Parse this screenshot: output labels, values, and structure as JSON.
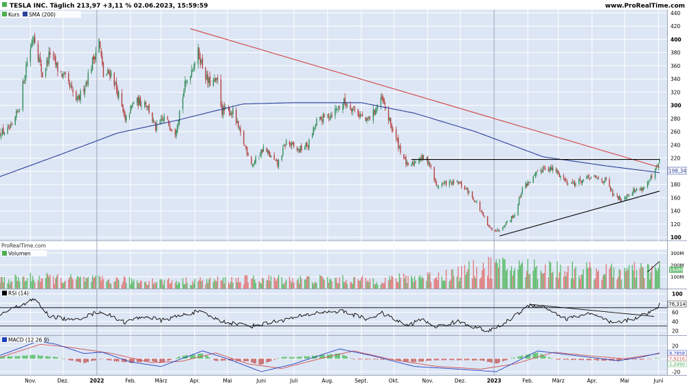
{
  "header": {
    "title": "TESLA INC. Täglich 213,97 +3,11 % 02.06.2023, 15:59:59",
    "site": "www.ProRealTime.com"
  },
  "watermark": "ProRealTime.com",
  "colors": {
    "background": "#ffffff",
    "panel": "#dde6f4",
    "grid": "#ffffff",
    "up": "#2e8b57",
    "down": "#b23a3a",
    "sma": "#2a3f9a",
    "trend_red": "#d04040",
    "trend_black": "#000000",
    "vol_up": "#5dbb6b",
    "vol_down": "#e07a7a",
    "rsi": "#000000",
    "macd": "#1f3fbf",
    "signal": "#d05050",
    "hist_up": "#58c068",
    "hist_down": "#c86464"
  },
  "chart_data": [
    {
      "type": "candlestick",
      "panel": "price",
      "legend": [
        {
          "name": "Kurs",
          "color": "#4caf50"
        },
        {
          "name": "SMA (200)",
          "color": "#2a3f9a"
        }
      ],
      "ylim": [
        95,
        445
      ],
      "yticks": [
        100,
        120,
        140,
        160,
        180,
        200,
        220,
        240,
        260,
        280,
        300,
        320,
        340,
        360,
        380,
        400,
        420,
        440
      ],
      "current_value": "198,34",
      "x_axis": {
        "start_date": "2021-10-04",
        "end_date": "2023-06-02",
        "month_labels": [
          {
            "date": "2021-11-01",
            "label": "Nov."
          },
          {
            "date": "2021-12-01",
            "label": "Dez."
          },
          {
            "date": "2022-01-01",
            "label": "2022"
          },
          {
            "date": "2022-02-01",
            "label": "Feb."
          },
          {
            "date": "2022-03-01",
            "label": "März"
          },
          {
            "date": "2022-04-01",
            "label": "Apr."
          },
          {
            "date": "2022-05-01",
            "label": "Mai"
          },
          {
            "date": "2022-06-01",
            "label": "Juni"
          },
          {
            "date": "2022-07-01",
            "label": "Juli"
          },
          {
            "date": "2022-08-01",
            "label": "Aug."
          },
          {
            "date": "2022-09-01",
            "label": "Sept."
          },
          {
            "date": "2022-10-01",
            "label": "Okt."
          },
          {
            "date": "2022-11-01",
            "label": "Nov."
          },
          {
            "date": "2022-12-01",
            "label": "Dez."
          },
          {
            "date": "2023-01-01",
            "label": "2023"
          },
          {
            "date": "2023-02-01",
            "label": "Feb."
          },
          {
            "date": "2023-03-01",
            "label": "März"
          },
          {
            "date": "2023-04-01",
            "label": "Apr."
          },
          {
            "date": "2023-05-01",
            "label": "Mai"
          },
          {
            "date": "2023-06-01",
            "label": "Juni"
          }
        ]
      },
      "close_anchors": [
        {
          "date": "2021-10-04",
          "value": 258
        },
        {
          "date": "2021-10-15",
          "value": 265
        },
        {
          "date": "2021-10-22",
          "value": 300
        },
        {
          "date": "2021-10-28",
          "value": 360
        },
        {
          "date": "2021-11-04",
          "value": 408
        },
        {
          "date": "2021-11-12",
          "value": 345
        },
        {
          "date": "2021-11-19",
          "value": 380
        },
        {
          "date": "2021-11-26",
          "value": 355
        },
        {
          "date": "2021-12-03",
          "value": 340
        },
        {
          "date": "2021-12-14",
          "value": 305
        },
        {
          "date": "2021-12-22",
          "value": 335
        },
        {
          "date": "2022-01-03",
          "value": 398
        },
        {
          "date": "2022-01-07",
          "value": 345
        },
        {
          "date": "2022-01-14",
          "value": 350
        },
        {
          "date": "2022-01-21",
          "value": 315
        },
        {
          "date": "2022-01-27",
          "value": 275
        },
        {
          "date": "2022-02-04",
          "value": 305
        },
        {
          "date": "2022-02-15",
          "value": 305
        },
        {
          "date": "2022-02-24",
          "value": 265
        },
        {
          "date": "2022-03-04",
          "value": 280
        },
        {
          "date": "2022-03-14",
          "value": 260
        },
        {
          "date": "2022-03-23",
          "value": 330
        },
        {
          "date": "2022-04-04",
          "value": 380
        },
        {
          "date": "2022-04-13",
          "value": 335
        },
        {
          "date": "2022-04-22",
          "value": 335
        },
        {
          "date": "2022-04-26",
          "value": 292
        },
        {
          "date": "2022-05-06",
          "value": 290
        },
        {
          "date": "2022-05-13",
          "value": 255
        },
        {
          "date": "2022-05-24",
          "value": 210
        },
        {
          "date": "2022-06-03",
          "value": 235
        },
        {
          "date": "2022-06-16",
          "value": 210
        },
        {
          "date": "2022-06-24",
          "value": 245
        },
        {
          "date": "2022-07-05",
          "value": 232
        },
        {
          "date": "2022-07-14",
          "value": 240
        },
        {
          "date": "2022-07-22",
          "value": 275
        },
        {
          "date": "2022-08-05",
          "value": 288
        },
        {
          "date": "2022-08-16",
          "value": 305
        },
        {
          "date": "2022-08-25",
          "value": 295
        },
        {
          "date": "2022-09-06",
          "value": 275
        },
        {
          "date": "2022-09-20",
          "value": 308
        },
        {
          "date": "2022-09-26",
          "value": 280
        },
        {
          "date": "2022-10-05",
          "value": 240
        },
        {
          "date": "2022-10-14",
          "value": 205
        },
        {
          "date": "2022-10-25",
          "value": 222
        },
        {
          "date": "2022-11-02",
          "value": 215
        },
        {
          "date": "2022-11-09",
          "value": 178
        },
        {
          "date": "2022-11-18",
          "value": 182
        },
        {
          "date": "2022-11-29",
          "value": 182
        },
        {
          "date": "2022-12-07",
          "value": 172
        },
        {
          "date": "2022-12-16",
          "value": 152
        },
        {
          "date": "2022-12-27",
          "value": 115
        },
        {
          "date": "2023-01-04",
          "value": 110
        },
        {
          "date": "2023-01-12",
          "value": 122
        },
        {
          "date": "2023-01-20",
          "value": 135
        },
        {
          "date": "2023-01-27",
          "value": 175
        },
        {
          "date": "2023-02-06",
          "value": 190
        },
        {
          "date": "2023-02-16",
          "value": 207
        },
        {
          "date": "2023-02-27",
          "value": 200
        },
        {
          "date": "2023-03-08",
          "value": 185
        },
        {
          "date": "2023-03-16",
          "value": 182
        },
        {
          "date": "2023-03-29",
          "value": 190
        },
        {
          "date": "2023-04-05",
          "value": 190
        },
        {
          "date": "2023-04-14",
          "value": 185
        },
        {
          "date": "2023-04-21",
          "value": 162
        },
        {
          "date": "2023-04-28",
          "value": 158
        },
        {
          "date": "2023-05-08",
          "value": 170
        },
        {
          "date": "2023-05-18",
          "value": 175
        },
        {
          "date": "2023-05-26",
          "value": 190
        },
        {
          "date": "2023-06-02",
          "value": 214
        }
      ],
      "sma_anchors": [
        {
          "date": "2021-10-04",
          "value": 192
        },
        {
          "date": "2021-12-01",
          "value": 227
        },
        {
          "date": "2022-01-20",
          "value": 258
        },
        {
          "date": "2022-03-15",
          "value": 277
        },
        {
          "date": "2022-05-15",
          "value": 302
        },
        {
          "date": "2022-07-01",
          "value": 304
        },
        {
          "date": "2022-09-01",
          "value": 304
        },
        {
          "date": "2022-10-20",
          "value": 288
        },
        {
          "date": "2022-12-15",
          "value": 260
        },
        {
          "date": "2023-02-15",
          "value": 222
        },
        {
          "date": "2023-04-15",
          "value": 208
        },
        {
          "date": "2023-06-02",
          "value": 198
        }
      ],
      "trendlines": [
        {
          "color": "red",
          "from": {
            "date": "2022-03-28",
            "value": 416
          },
          "to": {
            "date": "2023-06-02",
            "value": 206
          }
        },
        {
          "color": "black",
          "from": {
            "date": "2022-10-17",
            "value": 218
          },
          "to": {
            "date": "2023-06-02",
            "value": 218
          }
        },
        {
          "color": "black",
          "from": {
            "date": "2023-01-06",
            "value": 102
          },
          "to": {
            "date": "2023-06-02",
            "value": 170
          }
        }
      ]
    },
    {
      "type": "bar",
      "panel": "volume",
      "legend": [
        {
          "name": "Volumen",
          "color": "#4caf50"
        }
      ],
      "ylim": [
        0,
        330
      ],
      "ytick_labels": [
        {
          "value": 300,
          "label": "300M"
        },
        {
          "value": 200,
          "label": "200M"
        },
        {
          "value": 100,
          "label": "100M"
        }
      ],
      "current_value": "164M",
      "level_anchors": [
        {
          "date": "2021-10-04",
          "value": 70
        },
        {
          "date": "2021-11-05",
          "value": 90
        },
        {
          "date": "2022-01-10",
          "value": 70
        },
        {
          "date": "2022-03-15",
          "value": 60
        },
        {
          "date": "2022-06-15",
          "value": 80
        },
        {
          "date": "2022-09-15",
          "value": 70
        },
        {
          "date": "2022-11-15",
          "value": 110
        },
        {
          "date": "2022-12-28",
          "value": 180
        },
        {
          "date": "2023-02-15",
          "value": 170
        },
        {
          "date": "2023-04-15",
          "value": 140
        },
        {
          "date": "2023-06-02",
          "value": 150
        }
      ]
    },
    {
      "type": "line",
      "panel": "rsi",
      "legend": [
        {
          "name": "RSI (14)",
          "color": "#000000"
        }
      ],
      "ylim": [
        10,
        110
      ],
      "yticks": [
        100,
        80,
        60,
        40,
        20
      ],
      "levels": [
        70,
        30
      ],
      "current_value": "76,314",
      "anchors": [
        {
          "date": "2021-10-04",
          "value": 55
        },
        {
          "date": "2021-10-25",
          "value": 78
        },
        {
          "date": "2021-11-05",
          "value": 88
        },
        {
          "date": "2021-11-18",
          "value": 52
        },
        {
          "date": "2021-12-10",
          "value": 42
        },
        {
          "date": "2022-01-04",
          "value": 62
        },
        {
          "date": "2022-01-27",
          "value": 38
        },
        {
          "date": "2022-02-15",
          "value": 52
        },
        {
          "date": "2022-03-01",
          "value": 42
        },
        {
          "date": "2022-04-04",
          "value": 62
        },
        {
          "date": "2022-04-26",
          "value": 40
        },
        {
          "date": "2022-05-24",
          "value": 30
        },
        {
          "date": "2022-06-15",
          "value": 40
        },
        {
          "date": "2022-07-25",
          "value": 60
        },
        {
          "date": "2022-08-15",
          "value": 62
        },
        {
          "date": "2022-09-06",
          "value": 45
        },
        {
          "date": "2022-09-20",
          "value": 58
        },
        {
          "date": "2022-10-14",
          "value": 30
        },
        {
          "date": "2022-10-25",
          "value": 45
        },
        {
          "date": "2022-11-09",
          "value": 28
        },
        {
          "date": "2022-11-29",
          "value": 40
        },
        {
          "date": "2022-12-27",
          "value": 18
        },
        {
          "date": "2023-01-10",
          "value": 35
        },
        {
          "date": "2023-02-03",
          "value": 76
        },
        {
          "date": "2023-02-16",
          "value": 72
        },
        {
          "date": "2023-03-08",
          "value": 45
        },
        {
          "date": "2023-03-29",
          "value": 58
        },
        {
          "date": "2023-04-21",
          "value": 35
        },
        {
          "date": "2023-05-08",
          "value": 45
        },
        {
          "date": "2023-05-26",
          "value": 62
        },
        {
          "date": "2023-06-02",
          "value": 76
        }
      ],
      "trendline": {
        "from": {
          "date": "2023-02-03",
          "value": 77
        },
        "to": {
          "date": "2023-05-28",
          "value": 51
        }
      }
    },
    {
      "type": "line+bar",
      "panel": "macd",
      "legend": [
        {
          "name": "MACD (12 26 9)",
          "color": "#1f3fbf"
        }
      ],
      "ylim": [
        -25,
        35
      ],
      "yticks": [
        20,
        0,
        -20
      ],
      "current_values": [
        "8,7858",
        "7,9216",
        "1,2450"
      ],
      "macd_anchors": [
        {
          "date": "2021-10-04",
          "value": 5
        },
        {
          "date": "2021-10-25",
          "value": 18
        },
        {
          "date": "2021-11-08",
          "value": 27
        },
        {
          "date": "2021-11-25",
          "value": 22
        },
        {
          "date": "2021-12-20",
          "value": 8
        },
        {
          "date": "2022-01-06",
          "value": 10
        },
        {
          "date": "2022-02-01",
          "value": -5
        },
        {
          "date": "2022-03-01",
          "value": -12
        },
        {
          "date": "2022-04-08",
          "value": 12
        },
        {
          "date": "2022-05-01",
          "value": 0
        },
        {
          "date": "2022-06-01",
          "value": -20
        },
        {
          "date": "2022-07-01",
          "value": -8
        },
        {
          "date": "2022-08-12",
          "value": 15
        },
        {
          "date": "2022-09-10",
          "value": 5
        },
        {
          "date": "2022-10-20",
          "value": -12
        },
        {
          "date": "2022-11-20",
          "value": -15
        },
        {
          "date": "2023-01-03",
          "value": -20
        },
        {
          "date": "2023-02-10",
          "value": 12
        },
        {
          "date": "2023-03-01",
          "value": 8
        },
        {
          "date": "2023-04-05",
          "value": 1
        },
        {
          "date": "2023-04-25",
          "value": -3
        },
        {
          "date": "2023-05-15",
          "value": 2
        },
        {
          "date": "2023-06-02",
          "value": 8.8
        }
      ],
      "signal_anchors": [
        {
          "date": "2021-10-04",
          "value": 2
        },
        {
          "date": "2021-11-10",
          "value": 22
        },
        {
          "date": "2021-12-05",
          "value": 18
        },
        {
          "date": "2022-01-15",
          "value": 8
        },
        {
          "date": "2022-02-20",
          "value": -6
        },
        {
          "date": "2022-03-20",
          "value": -4
        },
        {
          "date": "2022-04-20",
          "value": 9
        },
        {
          "date": "2022-05-20",
          "value": -8
        },
        {
          "date": "2022-06-20",
          "value": -15
        },
        {
          "date": "2022-07-25",
          "value": 0
        },
        {
          "date": "2022-08-25",
          "value": 12
        },
        {
          "date": "2022-10-01",
          "value": -2
        },
        {
          "date": "2022-11-10",
          "value": -12
        },
        {
          "date": "2022-12-20",
          "value": -16
        },
        {
          "date": "2023-01-20",
          "value": -8
        },
        {
          "date": "2023-02-25",
          "value": 10
        },
        {
          "date": "2023-04-01",
          "value": 4
        },
        {
          "date": "2023-05-01",
          "value": 0
        },
        {
          "date": "2023-06-02",
          "value": 7.9
        }
      ]
    }
  ]
}
